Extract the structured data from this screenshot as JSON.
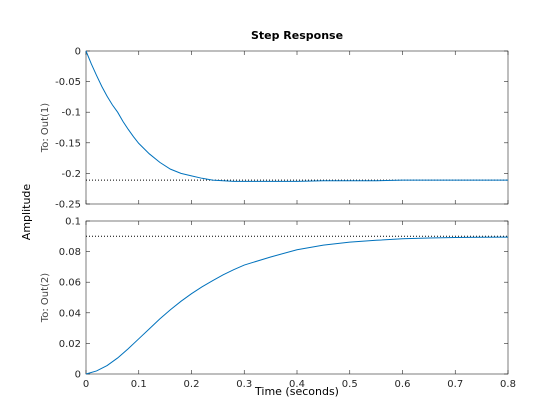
{
  "chart_data": {
    "type": "line",
    "title": "Step Response",
    "xlabel": "Time (seconds)",
    "ylabel": "Amplitude",
    "xlim": [
      0,
      0.8
    ],
    "xticks": [
      0,
      0.1,
      0.2,
      0.3,
      0.4,
      0.5,
      0.6,
      0.7,
      0.8
    ],
    "xtick_labels": [
      "0",
      "0.1",
      "0.2",
      "0.3",
      "0.4",
      "0.5",
      "0.6",
      "0.7",
      "0.8"
    ],
    "grid": false,
    "line_color": "#0072bd",
    "subplots": [
      {
        "label": "To: Out(1)",
        "ylim": [
          -0.25,
          0
        ],
        "yticks": [
          -0.25,
          -0.2,
          -0.15,
          -0.1,
          -0.05,
          0
        ],
        "ytick_labels": [
          "-0.25",
          "-0.2",
          "-0.15",
          "-0.1",
          "-0.05",
          "0"
        ],
        "steady_state": -0.211,
        "series": [
          {
            "x": [
              0,
              0.01,
              0.02,
              0.03,
              0.04,
              0.05,
              0.06,
              0.07,
              0.08,
              0.09,
              0.1,
              0.12,
              0.14,
              0.16,
              0.18,
              0.2,
              0.22,
              0.24,
              0.26,
              0.28,
              0.3,
              0.35,
              0.4,
              0.45,
              0.5,
              0.55,
              0.6,
              0.7,
              0.8
            ],
            "y": [
              0,
              -0.021,
              -0.04,
              -0.058,
              -0.074,
              -0.088,
              -0.1,
              -0.115,
              -0.128,
              -0.14,
              -0.151,
              -0.168,
              -0.182,
              -0.193,
              -0.2,
              -0.204,
              -0.208,
              -0.211,
              -0.212,
              -0.213,
              -0.213,
              -0.213,
              -0.213,
              -0.212,
              -0.212,
              -0.212,
              -0.211,
              -0.211,
              -0.211
            ]
          }
        ]
      },
      {
        "label": "To: Out(2)",
        "ylim": [
          0,
          0.1
        ],
        "yticks": [
          0,
          0.02,
          0.04,
          0.06,
          0.08,
          0.1
        ],
        "ytick_labels": [
          "0",
          "0.02",
          "0.04",
          "0.06",
          "0.08",
          "0.1"
        ],
        "steady_state": 0.09,
        "series": [
          {
            "x": [
              0,
              0.02,
              0.04,
              0.06,
              0.08,
              0.1,
              0.12,
              0.14,
              0.16,
              0.18,
              0.2,
              0.22,
              0.24,
              0.26,
              0.28,
              0.3,
              0.35,
              0.4,
              0.45,
              0.5,
              0.55,
              0.6,
              0.65,
              0.7,
              0.75,
              0.8
            ],
            "y": [
              0,
              0.002,
              0.0055,
              0.0105,
              0.0165,
              0.023,
              0.0295,
              0.036,
              0.042,
              0.0475,
              0.0525,
              0.057,
              0.061,
              0.0648,
              0.0682,
              0.0712,
              0.0765,
              0.0812,
              0.0842,
              0.0862,
              0.0874,
              0.0884,
              0.0889,
              0.0892,
              0.0894,
              0.0895
            ]
          }
        ]
      }
    ]
  }
}
